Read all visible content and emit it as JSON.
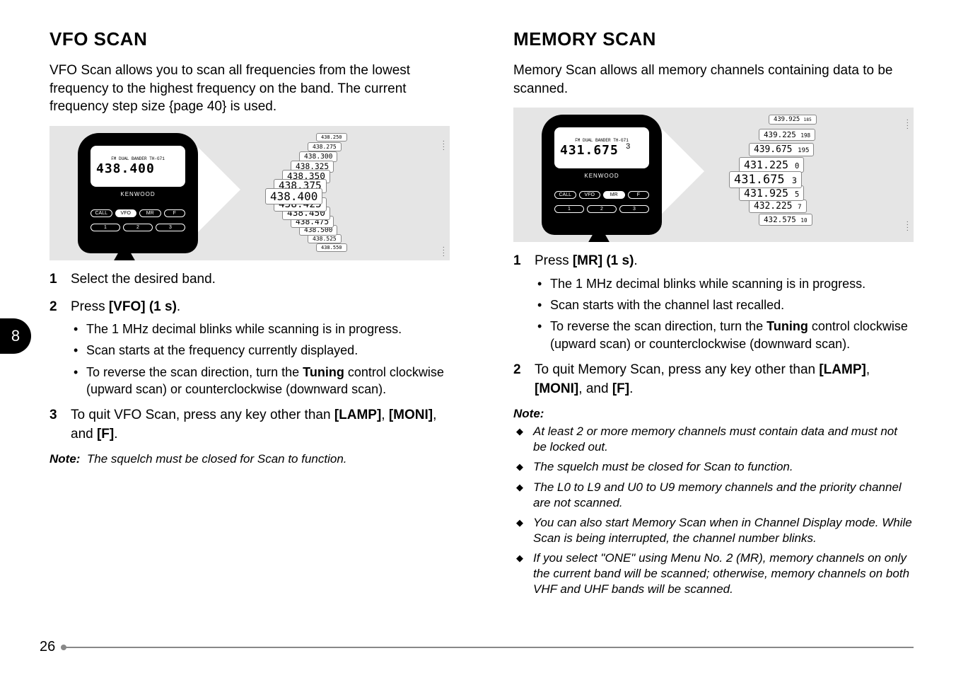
{
  "page_tab": "8",
  "page_number": "26",
  "left": {
    "heading": "VFO SCAN",
    "intro": "VFO Scan allows you to scan all frequencies from the lowest frequency to the highest frequency on the band. The current frequency step size {page 40} is used.",
    "radio": {
      "model": "FM DUAL BANDER TH-G71",
      "freq": "438.400",
      "brand": "KENWOOD",
      "btns": [
        "CALL",
        "VFO",
        "MR",
        "F"
      ],
      "nums": [
        "1",
        "2",
        "3"
      ],
      "highlight_btn_index": 1
    },
    "stack": [
      "438.250",
      "438.275",
      "438.300",
      "438.325",
      "438.350",
      "438.375",
      "438.400",
      "438.425",
      "438.450",
      "438.475",
      "438.500",
      "438.525",
      "438.550"
    ],
    "steps": [
      {
        "text": "Select the desired band."
      },
      {
        "text_html": "Press <b>[VFO] (1 s)</b>.",
        "sub": [
          "The 1 MHz decimal blinks while scanning is in progress.",
          "Scan starts at the frequency currently displayed.",
          "To reverse the scan direction, turn the <b>Tuning</b> control clockwise (upward scan) or counterclockwise (downward scan)."
        ]
      },
      {
        "text_html": "To quit VFO Scan, press any key other than <b>[LAMP]</b>, <b>[MONI]</b>, and <b>[F]</b>."
      }
    ],
    "note_label": "Note:",
    "note": "The squelch must be closed for Scan to function."
  },
  "right": {
    "heading": "MEMORY SCAN",
    "intro": "Memory Scan allows all memory channels containing data to be scanned.",
    "radio": {
      "model": "FM DUAL BANDER TH-G71",
      "freq": "431.675",
      "ch": "3",
      "brand": "KENWOOD",
      "btns": [
        "CALL",
        "VFO",
        "MR",
        "F"
      ],
      "nums": [
        "1",
        "2",
        "3"
      ],
      "highlight_btn_index": 2
    },
    "stack": [
      {
        "f": "439.925",
        "c": "185"
      },
      {
        "f": "439.225",
        "c": "198"
      },
      {
        "f": "439.675",
        "c": "195"
      },
      {
        "f": "431.225",
        "c": "0"
      },
      {
        "f": "431.675",
        "c": "3"
      },
      {
        "f": "431.925",
        "c": "5"
      },
      {
        "f": "432.225",
        "c": "7"
      },
      {
        "f": "432.575",
        "c": "10"
      }
    ],
    "steps": [
      {
        "text_html": "Press <b>[MR] (1 s)</b>.",
        "sub": [
          "The 1 MHz decimal blinks while scanning is in progress.",
          "Scan starts with the channel last recalled.",
          "To reverse the scan direction, turn the <b>Tuning</b> control clockwise (upward scan) or counterclockwise (downward scan)."
        ]
      },
      {
        "text_html": "To quit Memory Scan, press any key other than <b>[LAMP]</b>, <b>[MONI]</b>, and <b>[F]</b>."
      }
    ],
    "note_label": "Note:",
    "notes": [
      "At least 2 or more memory channels must contain data and must not be locked out.",
      "The squelch must be closed for Scan to function.",
      "The L0 to L9 and U0 to U9 memory channels and the priority channel are not scanned.",
      "You can also start Memory Scan when in Channel Display mode. While Scan is being interrupted, the channel number blinks.",
      "If you select \"ONE\" using Menu No. 2 (MR), memory channels on only the current band will be scanned; otherwise, memory channels on both VHF and UHF bands will be scanned."
    ]
  }
}
